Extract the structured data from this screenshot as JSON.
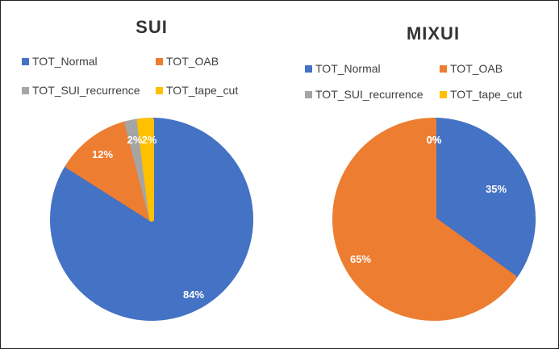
{
  "colors": {
    "TOT_Normal": "#4472C4",
    "TOT_OAB": "#ED7D31",
    "TOT_SUI_recurrence": "#A5A5A5",
    "TOT_tape_cut": "#FFC000"
  },
  "chart_data": [
    {
      "type": "pie",
      "title": "SUI",
      "legend_position": "top",
      "categories": [
        "TOT_Normal",
        "TOT_OAB",
        "TOT_SUI_recurrence",
        "TOT_tape_cut"
      ],
      "values": [
        84,
        12,
        2,
        2
      ],
      "labels": [
        "84%",
        "12%",
        "2%",
        "2%"
      ]
    },
    {
      "type": "pie",
      "title": "MIXUI",
      "legend_position": "top",
      "categories": [
        "TOT_Normal",
        "TOT_OAB",
        "TOT_SUI_recurrence",
        "TOT_tape_cut"
      ],
      "values": [
        35,
        65,
        0,
        0
      ],
      "labels": [
        "35%",
        "65%",
        "0%",
        "0%"
      ]
    }
  ]
}
